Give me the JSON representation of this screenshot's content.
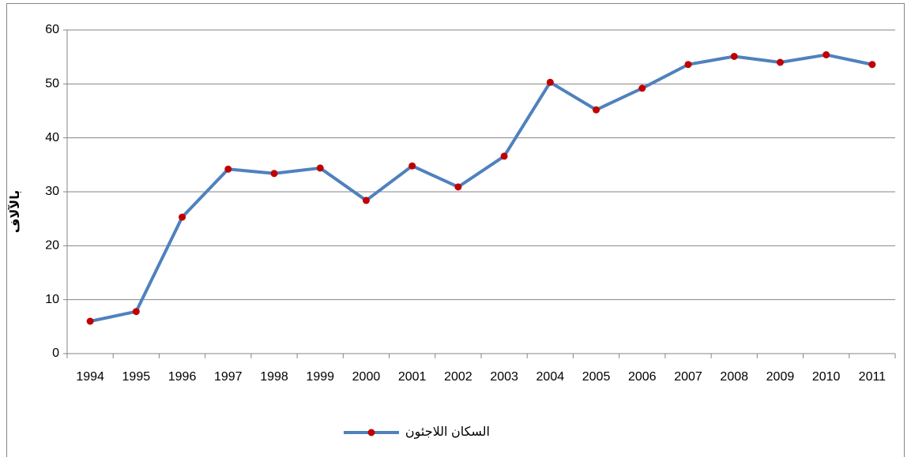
{
  "chart_data": {
    "type": "line",
    "y_label": "بالآلاف",
    "categories": [
      "1994",
      "1995",
      "1996",
      "1997",
      "1998",
      "1999",
      "2000",
      "2001",
      "2002",
      "2003",
      "2004",
      "2005",
      "2006",
      "2007",
      "2008",
      "2009",
      "2010",
      "2011"
    ],
    "series": [
      {
        "name": "السكان اللاجئون",
        "color": "#4f81bd",
        "marker_color": "#c00000",
        "values": [
          6.0,
          7.8,
          25.3,
          34.2,
          33.4,
          34.4,
          28.4,
          34.8,
          30.9,
          36.6,
          50.3,
          45.2,
          49.2,
          53.6,
          55.1,
          54.0,
          55.4,
          53.6
        ]
      }
    ],
    "ylim": [
      0,
      60
    ],
    "yticks": [
      0,
      10,
      20,
      30,
      40,
      50,
      60
    ],
    "grid": true,
    "legend": "bottom"
  }
}
